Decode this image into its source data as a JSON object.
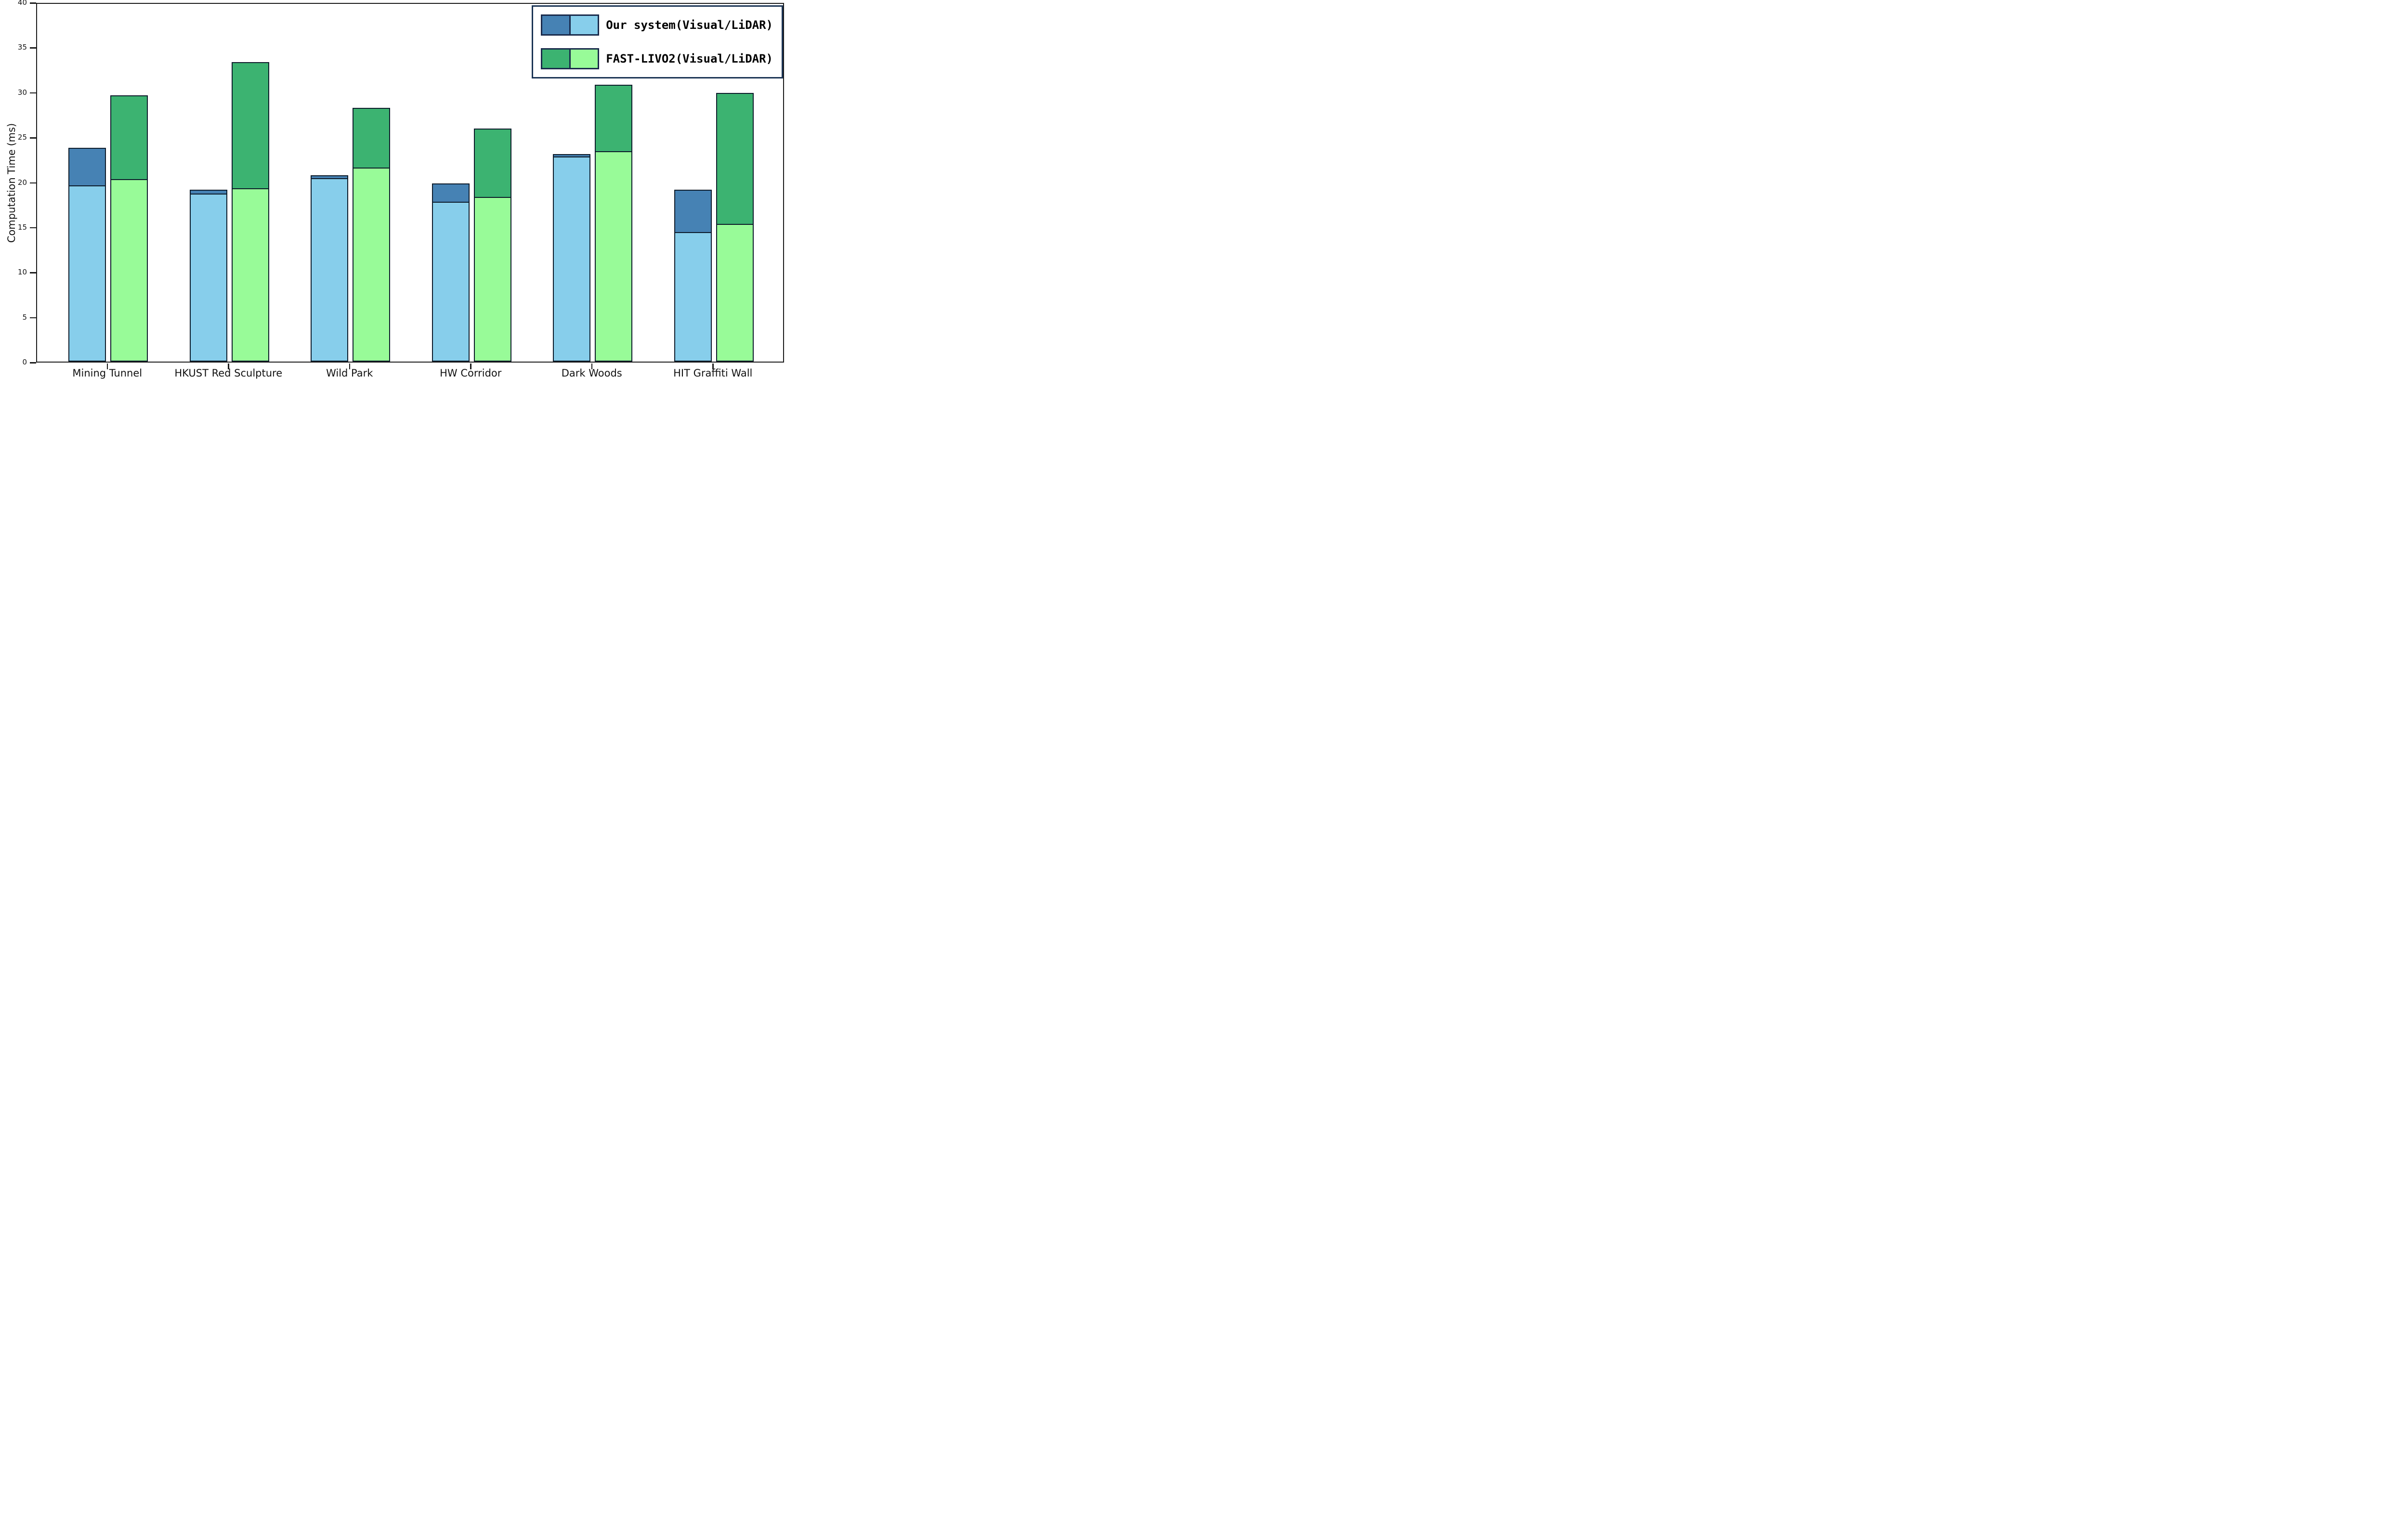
{
  "chart_data": {
    "type": "bar",
    "variant": "grouped-stacked",
    "title": "",
    "xlabel": "",
    "ylabel": "Computation Time (ms)",
    "ylim": [
      0,
      40
    ],
    "yticks": [
      0,
      5,
      10,
      15,
      20,
      25,
      30,
      35,
      40
    ],
    "grid": false,
    "legend_position": "upper right",
    "categories": [
      "Mining Tunnel",
      "HKUST Red Sculpture",
      "Wild Park",
      "HW Corridor",
      "Dark Woods",
      "HIT Graffiti Wall"
    ],
    "series": [
      {
        "name": "Our system - LiDAR part",
        "stack": "our",
        "part": "lidar",
        "color": "#87CEEB",
        "values": [
          19.6,
          18.7,
          20.4,
          17.8,
          22.8,
          14.4
        ]
      },
      {
        "name": "Our system - Visual part",
        "stack": "our",
        "part": "visual",
        "color": "#4682B4",
        "values": [
          4.2,
          0.4,
          0.3,
          2.0,
          0.3,
          4.7
        ]
      },
      {
        "name": "FAST-LIVO2 - LiDAR part",
        "stack": "fast",
        "part": "lidar",
        "color": "#98FB98",
        "values": [
          20.3,
          19.3,
          21.6,
          18.3,
          23.4,
          15.3
        ]
      },
      {
        "name": "FAST-LIVO2 - Visual part",
        "stack": "fast",
        "part": "visual",
        "color": "#3CB371",
        "values": [
          9.3,
          14.0,
          6.6,
          7.6,
          7.4,
          14.6
        ]
      }
    ],
    "stack_totals": {
      "our": [
        23.8,
        19.1,
        20.7,
        19.8,
        23.1,
        19.1
      ],
      "fast": [
        29.6,
        33.3,
        28.2,
        25.9,
        30.8,
        29.9
      ]
    },
    "legend": [
      {
        "label": "Our system(Visual/LiDAR)",
        "swatches": [
          "#4682B4",
          "#87CEEB"
        ]
      },
      {
        "label": "FAST-LIVO2(Visual/LiDAR)",
        "swatches": [
          "#3CB371",
          "#98FB98"
        ]
      }
    ],
    "colors": {
      "our_visual": "#4682B4",
      "our_lidar": "#87CEEB",
      "fast_visual": "#3CB371",
      "fast_lidar": "#98FB98",
      "bar_edge": "#0d1b2a",
      "legend_border": "#1b3455",
      "axis": "#1a1a1a",
      "background": "#ffffff"
    }
  }
}
